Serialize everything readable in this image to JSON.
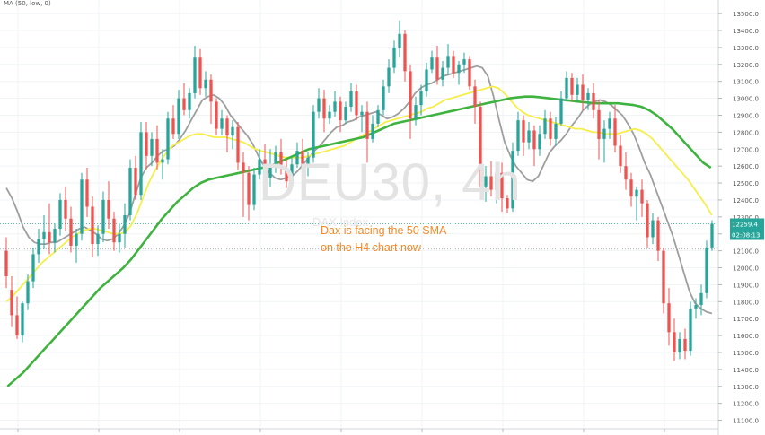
{
  "chart_data": {
    "type": "candlestick",
    "title": "DEU30, 4h",
    "subtitle": "DAX Index",
    "indicator_legend": "MA (50, low, 0)",
    "annotation_lines": [
      "Dax is facing the 50 SMA",
      "on the H4 chart now"
    ],
    "y_ticks": [
      11100,
      11200,
      11300,
      11400,
      11500,
      11600,
      11700,
      11800,
      11900,
      12000,
      12100,
      12200,
      12300,
      12400,
      12500,
      12600,
      12700,
      12800,
      12900,
      13000,
      13100,
      13200,
      13300,
      13400,
      13500
    ],
    "y_tick_labels": [
      "11100.0",
      "11200.0",
      "11300.0",
      "11400.0",
      "11500.0",
      "11600.0",
      "11700.0",
      "11800.0",
      "11900.0",
      "12000.0",
      "12100.0",
      "12200.0",
      "12300.0",
      "12400.0",
      "12500.0",
      "12600.0",
      "12700.0",
      "12800.0",
      "12900.0",
      "13000.0",
      "13100.0",
      "13200.0",
      "13300.0",
      "13400.0",
      "13500.0"
    ],
    "ylim": [
      11050,
      13580
    ],
    "price_label": "12259.4",
    "countdown_label": "02:08:13",
    "price_level": 12259.4,
    "ref_level": 12110,
    "candles": [
      [
        12100,
        12180,
        11950,
        11880
      ],
      [
        11870,
        11950,
        11720,
        11650
      ],
      [
        11720,
        11830,
        11600,
        11580
      ],
      [
        11600,
        11800,
        11790,
        11560
      ],
      [
        11790,
        11960,
        11920,
        11750
      ],
      [
        11920,
        12120,
        12080,
        11880
      ],
      [
        12080,
        12230,
        12170,
        12030
      ],
      [
        12170,
        12310,
        12210,
        12110
      ],
      [
        12210,
        12380,
        12150,
        12080
      ],
      [
        12150,
        12260,
        12230,
        12090
      ],
      [
        12230,
        12440,
        12400,
        12190
      ],
      [
        12400,
        12480,
        12290,
        12220
      ],
      [
        12290,
        12360,
        12130,
        12090
      ],
      [
        12130,
        12230,
        12200,
        12030
      ],
      [
        12200,
        12560,
        12520,
        12160
      ],
      [
        12520,
        12590,
        12360,
        12300
      ],
      [
        12360,
        12420,
        12140,
        12060
      ],
      [
        12140,
        12250,
        12200,
        12070
      ],
      [
        12200,
        12450,
        12400,
        12150
      ],
      [
        12400,
        12510,
        12290,
        12230
      ],
      [
        12290,
        12330,
        12150,
        12100
      ],
      [
        12150,
        12260,
        12200,
        12090
      ],
      [
        12200,
        12380,
        12310,
        12120
      ],
      [
        12310,
        12640,
        12590,
        12280
      ],
      [
        12590,
        12660,
        12430,
        12400
      ],
      [
        12430,
        12860,
        12800,
        12400
      ],
      [
        12800,
        12860,
        12660,
        12580
      ],
      [
        12660,
        12800,
        12760,
        12600
      ],
      [
        12760,
        12840,
        12620,
        12580
      ],
      [
        12620,
        12700,
        12640,
        12520
      ],
      [
        12640,
        12920,
        12880,
        12610
      ],
      [
        12880,
        12960,
        12790,
        12760
      ],
      [
        12790,
        13050,
        13000,
        12760
      ],
      [
        13000,
        13090,
        12930,
        12900
      ],
      [
        12930,
        13060,
        13030,
        12880
      ],
      [
        13030,
        13310,
        13240,
        13000
      ],
      [
        13240,
        13290,
        13060,
        13020
      ],
      [
        13060,
        13160,
        13110,
        13010
      ],
      [
        13110,
        13140,
        12980,
        12850
      ],
      [
        12980,
        13000,
        12820,
        12780
      ],
      [
        12820,
        12930,
        12880,
        12780
      ],
      [
        12880,
        12900,
        12780,
        12680
      ],
      [
        12780,
        12870,
        12830,
        12700
      ],
      [
        12830,
        12860,
        12620,
        12580
      ],
      [
        12620,
        12680,
        12560,
        12300
      ],
      [
        12560,
        12600,
        12370,
        12280
      ],
      [
        12370,
        12590,
        12550,
        12340
      ],
      [
        12550,
        12700,
        12640,
        12520
      ],
      [
        12640,
        12730,
        12530,
        12500
      ],
      [
        12530,
        12700,
        12610,
        12480
      ],
      [
        12610,
        12720,
        12680,
        12560
      ],
      [
        12680,
        12760,
        12590,
        12550
      ],
      [
        12590,
        12640,
        12510,
        12470
      ],
      [
        12510,
        12650,
        12610,
        12480
      ],
      [
        12610,
        12740,
        12690,
        12590
      ],
      [
        12690,
        12760,
        12600,
        12560
      ],
      [
        12600,
        12680,
        12650,
        12540
      ],
      [
        12650,
        12960,
        12920,
        12620
      ],
      [
        12920,
        13060,
        13000,
        12880
      ],
      [
        13000,
        13050,
        12880,
        12800
      ],
      [
        12880,
        12960,
        12920,
        12850
      ],
      [
        12920,
        13040,
        12980,
        12890
      ],
      [
        12980,
        13010,
        12870,
        12800
      ],
      [
        12870,
        12980,
        12950,
        12850
      ],
      [
        12950,
        13090,
        13040,
        12920
      ],
      [
        13040,
        13080,
        12900,
        12870
      ],
      [
        12900,
        12960,
        12920,
        12800
      ],
      [
        12920,
        12980,
        12760,
        12620
      ],
      [
        12760,
        12900,
        12850,
        12740
      ],
      [
        12850,
        12960,
        12930,
        12830
      ],
      [
        12930,
        13110,
        13070,
        12900
      ],
      [
        13070,
        13230,
        13180,
        13030
      ],
      [
        13180,
        13340,
        13300,
        13150
      ],
      [
        13300,
        13460,
        13380,
        13240
      ],
      [
        13380,
        13400,
        13160,
        13100
      ],
      [
        13160,
        13200,
        12880,
        12760
      ],
      [
        12880,
        13010,
        12960,
        12840
      ],
      [
        12960,
        13080,
        13040,
        12900
      ],
      [
        13040,
        13210,
        13170,
        13010
      ],
      [
        13170,
        13280,
        13240,
        13150
      ],
      [
        13240,
        13310,
        13110,
        13080
      ],
      [
        13110,
        13220,
        13180,
        13070
      ],
      [
        13180,
        13320,
        13250,
        13140
      ],
      [
        13250,
        13280,
        13150,
        13120
      ],
      [
        13150,
        13220,
        13200,
        13080
      ],
      [
        13200,
        13270,
        13230,
        13150
      ],
      [
        13230,
        13250,
        13070,
        13050
      ],
      [
        13070,
        13110,
        12950,
        12850
      ],
      [
        12950,
        12980,
        12480,
        12420
      ],
      [
        12480,
        12600,
        12540,
        12390
      ],
      [
        12540,
        12630,
        12460,
        12420
      ],
      [
        12460,
        12580,
        12560,
        12380
      ],
      [
        12560,
        12620,
        12410,
        12330
      ],
      [
        12410,
        12430,
        12350,
        12320
      ],
      [
        12350,
        12740,
        12690,
        12330
      ],
      [
        12690,
        12920,
        12870,
        12660
      ],
      [
        12870,
        12900,
        12740,
        12660
      ],
      [
        12740,
        12860,
        12810,
        12700
      ],
      [
        12810,
        12840,
        12700,
        12600
      ],
      [
        12700,
        12840,
        12790,
        12660
      ],
      [
        12790,
        12930,
        12880,
        12760
      ],
      [
        12880,
        12920,
        12760,
        12720
      ],
      [
        12760,
        12890,
        12850,
        12720
      ],
      [
        12850,
        13040,
        13000,
        12840
      ],
      [
        13000,
        13160,
        13120,
        12980
      ],
      [
        13120,
        13150,
        13020,
        12980
      ],
      [
        13020,
        13120,
        13080,
        12980
      ],
      [
        13080,
        13140,
        12990,
        12930
      ],
      [
        12990,
        13060,
        13030,
        12930
      ],
      [
        13030,
        13090,
        12930,
        12880
      ],
      [
        12930,
        12990,
        12760,
        12640
      ],
      [
        12760,
        12870,
        12820,
        12620
      ],
      [
        12820,
        12920,
        12880,
        12760
      ],
      [
        12880,
        12960,
        12720,
        12680
      ],
      [
        12720,
        12780,
        12600,
        12560
      ],
      [
        12600,
        12680,
        12520,
        12460
      ],
      [
        12520,
        12560,
        12420,
        12360
      ],
      [
        12420,
        12480,
        12460,
        12280
      ],
      [
        12460,
        12520,
        12380,
        12300
      ],
      [
        12380,
        12400,
        12180,
        12120
      ],
      [
        12180,
        12320,
        12280,
        12140
      ],
      [
        12280,
        12300,
        12100,
        12040
      ],
      [
        12100,
        12120,
        11790,
        11730
      ],
      [
        11790,
        11880,
        11620,
        11540
      ],
      [
        11620,
        11700,
        11500,
        11450
      ],
      [
        11500,
        11620,
        11580,
        11460
      ],
      [
        11580,
        11640,
        11510,
        11460
      ],
      [
        11510,
        11800,
        11760,
        11480
      ],
      [
        11760,
        11820,
        11780,
        11700
      ],
      [
        11780,
        11900,
        11850,
        11720
      ],
      [
        11850,
        12160,
        12120,
        11820
      ],
      [
        12120,
        12280,
        12259.4,
        12100
      ]
    ],
    "series": [
      {
        "color": "#9e9e9e",
        "values": [
          12470,
          12410,
          12330,
          12240,
          12180,
          12150,
          12140,
          12140,
          12150,
          12150,
          12170,
          12190,
          12210,
          12230,
          12240,
          12220,
          12200,
          12170,
          12160,
          12170,
          12200,
          12250,
          12320,
          12430,
          12530,
          12590,
          12620,
          12660,
          12690,
          12700,
          12720,
          12760,
          12810,
          12870,
          12930,
          12990,
          13010,
          13020,
          13000,
          12960,
          12900,
          12860,
          12820,
          12780,
          12730,
          12660,
          12600,
          12560,
          12530,
          12520,
          12530,
          12540,
          12570,
          12610,
          12650,
          12690,
          12720,
          12760,
          12800,
          12830,
          12840,
          12860,
          12870,
          12890,
          12900,
          12910,
          12920,
          12900,
          12880,
          12890,
          12910,
          12940,
          12980,
          13030,
          13060,
          13080,
          13090,
          13110,
          13130,
          13140,
          13150,
          13160,
          13170,
          13180,
          13190,
          13180,
          13130,
          13010,
          12870,
          12740,
          12660,
          12600,
          12560,
          12520,
          12510,
          12540,
          12610,
          12680,
          12720,
          12750,
          12790,
          12840,
          12880,
          12930,
          12960,
          12980,
          12990,
          12980,
          12960,
          12930,
          12900,
          12850,
          12790,
          12710,
          12620,
          12550,
          12460,
          12370,
          12280,
          12190,
          12080,
          11970,
          11860,
          11790,
          11760,
          11740,
          11730
        ]
      },
      {
        "color": "#f6ee4a",
        "values": [
          11800,
          11830,
          11870,
          11910,
          11950,
          11990,
          12030,
          12060,
          12090,
          12120,
          12150,
          12180,
          12200,
          12220,
          12230,
          12230,
          12220,
          12210,
          12200,
          12200,
          12210,
          12250,
          12320,
          12410,
          12500,
          12570,
          12630,
          12680,
          12720,
          12740,
          12760,
          12780,
          12790,
          12790,
          12780,
          12770,
          12770,
          12770,
          12760,
          12750,
          12740,
          12720,
          12700,
          12690,
          12680,
          12670,
          12660,
          12650,
          12650,
          12650,
          12650,
          12660,
          12670,
          12680,
          12690,
          12700,
          12710,
          12720,
          12740,
          12760,
          12780,
          12800,
          12820,
          12840,
          12860,
          12870,
          12880,
          12890,
          12900,
          12910,
          12920,
          12940,
          12950,
          12970,
          12990,
          13000,
          13010,
          13020,
          13030,
          13040,
          13050,
          13060,
          13070,
          13060,
          13030,
          12990,
          12950,
          12920,
          12900,
          12890,
          12880,
          12870,
          12860,
          12850,
          12840,
          12830,
          12820,
          12820,
          12810,
          12800,
          12800,
          12790,
          12790,
          12790,
          12800,
          12810,
          12820,
          12810,
          12790,
          12760,
          12720,
          12680,
          12640,
          12600,
          12560,
          12520,
          12470,
          12420,
          12370,
          12310
        ]
      },
      {
        "color": "#3fb33f",
        "values": [
          11300,
          11340,
          11380,
          11430,
          11480,
          11530,
          11580,
          11630,
          11680,
          11730,
          11780,
          11830,
          11880,
          11920,
          11960,
          12000,
          12050,
          12110,
          12170,
          12230,
          12290,
          12340,
          12390,
          12430,
          12470,
          12500,
          12520,
          12530,
          12540,
          12550,
          12560,
          12570,
          12580,
          12590,
          12600,
          12620,
          12640,
          12660,
          12680,
          12700,
          12710,
          12720,
          12730,
          12740,
          12750,
          12760,
          12770,
          12790,
          12810,
          12830,
          12850,
          12860,
          12870,
          12880,
          12890,
          12900,
          12910,
          12920,
          12930,
          12940,
          12950,
          12960,
          12970,
          12980,
          12990,
          13000,
          13005,
          13010,
          13010,
          13005,
          13000,
          12995,
          12990,
          12985,
          12980,
          12975,
          12970,
          12970,
          12970,
          12970,
          12965,
          12960,
          12950,
          12930,
          12900,
          12860,
          12820,
          12770,
          12720,
          12670,
          12620,
          12590
        ]
      }
    ]
  }
}
